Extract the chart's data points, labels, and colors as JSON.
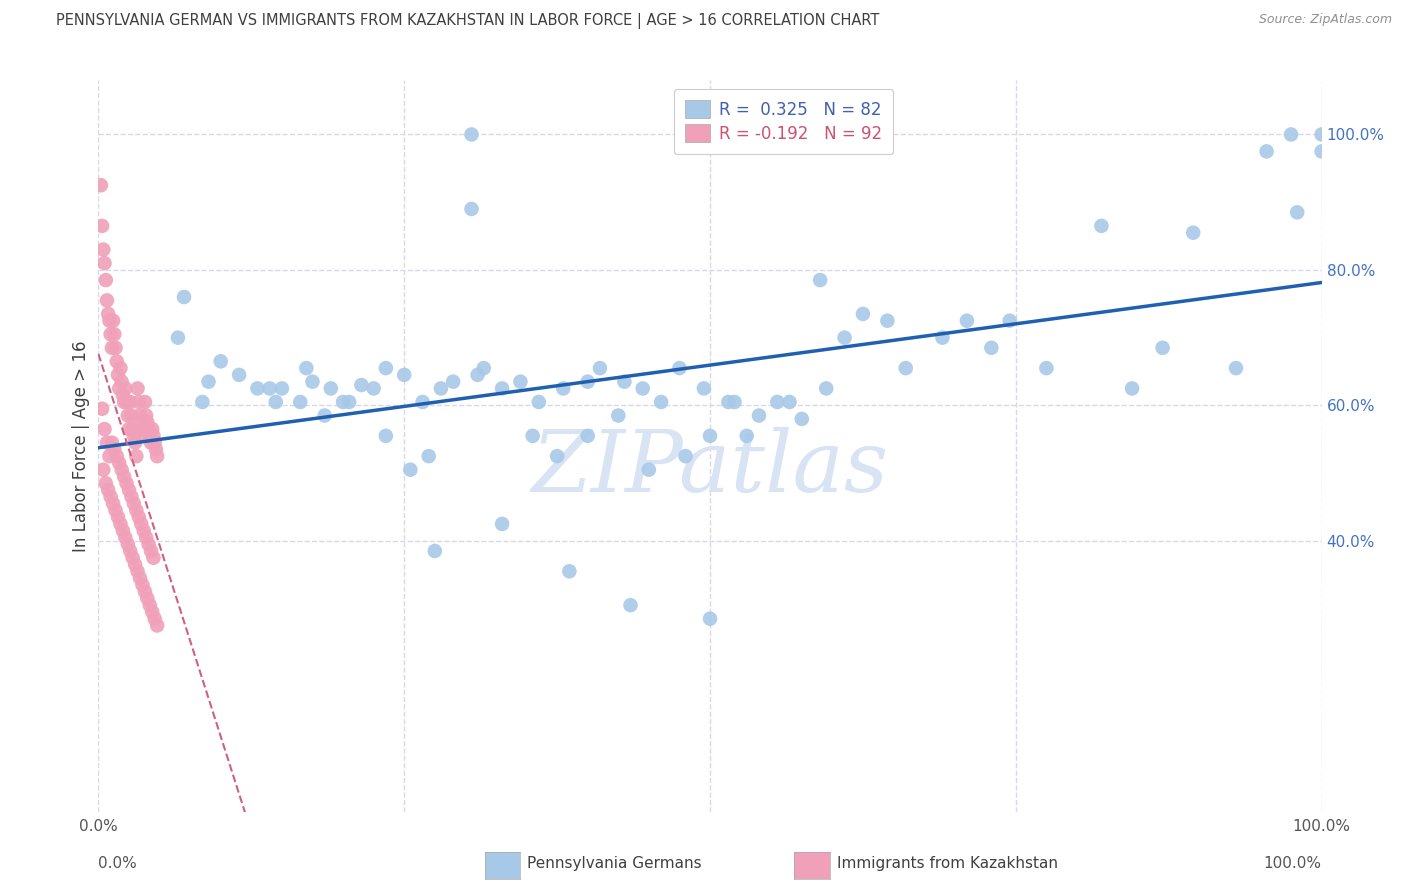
{
  "title": "PENNSYLVANIA GERMAN VS IMMIGRANTS FROM KAZAKHSTAN IN LABOR FORCE | AGE > 16 CORRELATION CHART",
  "source": "Source: ZipAtlas.com",
  "ylabel": "In Labor Force | Age > 16",
  "watermark": "ZIPatlas",
  "legend_blue_label": "Pennsylvania Germans",
  "legend_pink_label": "Immigrants from Kazakhstan",
  "R_blue": 0.325,
  "N_blue": 82,
  "R_pink": -0.192,
  "N_pink": 92,
  "blue_color": "#a8c8e8",
  "blue_line_color": "#2060b0",
  "pink_color": "#f0a0b8",
  "pink_line_color": "#d06080",
  "background_color": "#ffffff",
  "grid_color": "#d8d8e8",
  "title_color": "#404040",
  "source_color": "#909090",
  "watermark_color": "#d8e4f4",
  "blue_x": [
    0.305,
    0.305,
    0.07,
    0.065,
    0.1,
    0.115,
    0.13,
    0.09,
    0.085,
    0.14,
    0.15,
    0.175,
    0.19,
    0.2,
    0.215,
    0.235,
    0.25,
    0.265,
    0.28,
    0.29,
    0.31,
    0.315,
    0.33,
    0.345,
    0.36,
    0.38,
    0.4,
    0.41,
    0.43,
    0.445,
    0.46,
    0.475,
    0.495,
    0.515,
    0.53,
    0.555,
    0.575,
    0.595,
    0.61,
    0.625,
    0.645,
    0.66,
    0.69,
    0.71,
    0.73,
    0.745,
    0.775,
    0.82,
    0.845,
    0.87,
    0.895,
    0.93,
    0.955,
    0.975,
    0.98,
    1.0,
    1.0,
    0.355,
    0.375,
    0.4,
    0.425,
    0.45,
    0.48,
    0.5,
    0.52,
    0.54,
    0.275,
    0.33,
    0.385,
    0.435,
    0.5,
    0.205,
    0.185,
    0.165,
    0.235,
    0.255,
    0.27,
    0.145,
    0.59,
    0.565,
    0.17,
    0.225
  ],
  "blue_y": [
    1.0,
    0.89,
    0.76,
    0.7,
    0.665,
    0.645,
    0.625,
    0.635,
    0.605,
    0.625,
    0.625,
    0.635,
    0.625,
    0.605,
    0.63,
    0.655,
    0.645,
    0.605,
    0.625,
    0.635,
    0.645,
    0.655,
    0.625,
    0.635,
    0.605,
    0.625,
    0.635,
    0.655,
    0.635,
    0.625,
    0.605,
    0.655,
    0.625,
    0.605,
    0.555,
    0.605,
    0.58,
    0.625,
    0.7,
    0.735,
    0.725,
    0.655,
    0.7,
    0.725,
    0.685,
    0.725,
    0.655,
    0.865,
    0.625,
    0.685,
    0.855,
    0.655,
    0.975,
    1.0,
    0.885,
    0.975,
    1.0,
    0.555,
    0.525,
    0.555,
    0.585,
    0.505,
    0.525,
    0.555,
    0.605,
    0.585,
    0.385,
    0.425,
    0.355,
    0.305,
    0.285,
    0.605,
    0.585,
    0.605,
    0.555,
    0.505,
    0.525,
    0.605,
    0.785,
    0.605,
    0.655,
    0.625
  ],
  "pink_x": [
    0.002,
    0.003,
    0.004,
    0.005,
    0.006,
    0.007,
    0.008,
    0.009,
    0.01,
    0.011,
    0.012,
    0.013,
    0.014,
    0.015,
    0.016,
    0.017,
    0.018,
    0.019,
    0.02,
    0.021,
    0.022,
    0.023,
    0.024,
    0.025,
    0.026,
    0.027,
    0.028,
    0.029,
    0.03,
    0.031,
    0.032,
    0.033,
    0.034,
    0.035,
    0.036,
    0.037,
    0.038,
    0.039,
    0.04,
    0.041,
    0.042,
    0.043,
    0.044,
    0.045,
    0.046,
    0.047,
    0.048,
    0.003,
    0.005,
    0.007,
    0.009,
    0.011,
    0.013,
    0.015,
    0.017,
    0.019,
    0.021,
    0.023,
    0.025,
    0.027,
    0.029,
    0.031,
    0.033,
    0.035,
    0.037,
    0.039,
    0.041,
    0.043,
    0.045,
    0.004,
    0.006,
    0.008,
    0.01,
    0.012,
    0.014,
    0.016,
    0.018,
    0.02,
    0.022,
    0.024,
    0.026,
    0.028,
    0.03,
    0.032,
    0.034,
    0.036,
    0.038,
    0.04,
    0.042,
    0.044,
    0.046,
    0.048
  ],
  "pink_y": [
    0.925,
    0.865,
    0.83,
    0.81,
    0.785,
    0.755,
    0.735,
    0.725,
    0.705,
    0.685,
    0.725,
    0.705,
    0.685,
    0.665,
    0.645,
    0.625,
    0.655,
    0.635,
    0.615,
    0.605,
    0.625,
    0.605,
    0.585,
    0.565,
    0.605,
    0.585,
    0.565,
    0.555,
    0.545,
    0.525,
    0.625,
    0.605,
    0.585,
    0.575,
    0.565,
    0.555,
    0.605,
    0.585,
    0.575,
    0.565,
    0.555,
    0.545,
    0.565,
    0.555,
    0.545,
    0.535,
    0.525,
    0.595,
    0.565,
    0.545,
    0.525,
    0.545,
    0.535,
    0.525,
    0.515,
    0.505,
    0.495,
    0.485,
    0.475,
    0.465,
    0.455,
    0.445,
    0.435,
    0.425,
    0.415,
    0.405,
    0.395,
    0.385,
    0.375,
    0.505,
    0.485,
    0.475,
    0.465,
    0.455,
    0.445,
    0.435,
    0.425,
    0.415,
    0.405,
    0.395,
    0.385,
    0.375,
    0.365,
    0.355,
    0.345,
    0.335,
    0.325,
    0.315,
    0.305,
    0.295,
    0.285,
    0.275
  ]
}
